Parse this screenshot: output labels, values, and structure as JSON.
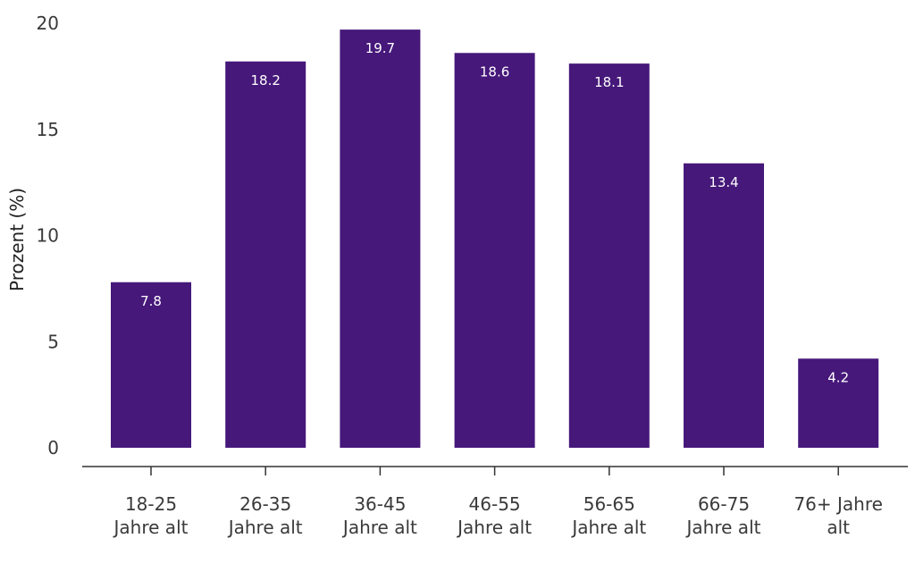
{
  "chart_data": {
    "type": "bar",
    "categories": [
      [
        "18-25",
        "Jahre alt"
      ],
      [
        "26-35",
        "Jahre alt"
      ],
      [
        "36-45",
        "Jahre alt"
      ],
      [
        "46-55",
        "Jahre alt"
      ],
      [
        "56-65",
        "Jahre alt"
      ],
      [
        "66-75",
        "Jahre alt"
      ],
      [
        "76+ Jahre",
        "alt"
      ]
    ],
    "values": [
      7.8,
      18.2,
      19.7,
      18.6,
      18.1,
      13.4,
      4.2
    ],
    "data_labels": [
      "7.8",
      "18.2",
      "19.7",
      "18.6",
      "18.1",
      "13.4",
      "4.2"
    ],
    "ylabel": "Prozent (%)",
    "xlabel": "",
    "ylim": [
      0,
      20
    ],
    "yticks": [
      0,
      5,
      10,
      15,
      20
    ],
    "grid": false,
    "bar_color": "#46187a"
  }
}
